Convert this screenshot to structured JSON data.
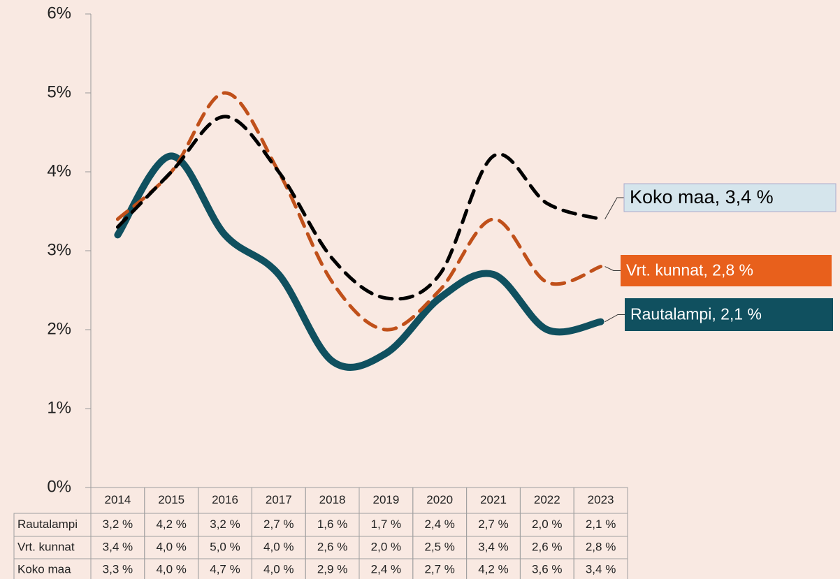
{
  "chart_data": {
    "type": "line",
    "categories": [
      "2014",
      "2015",
      "2016",
      "2017",
      "2018",
      "2019",
      "2020",
      "2021",
      "2022",
      "2023"
    ],
    "ylim": [
      0,
      6
    ],
    "yticks": [
      {
        "value": 0,
        "label": "0%"
      },
      {
        "value": 1,
        "label": "1%"
      },
      {
        "value": 2,
        "label": "2%"
      },
      {
        "value": 3,
        "label": "3%"
      },
      {
        "value": 4,
        "label": "4%"
      },
      {
        "value": 5,
        "label": "5%"
      },
      {
        "value": 6,
        "label": "6%"
      }
    ],
    "series": [
      {
        "name": "Rautalampi",
        "color": "#10505f",
        "style": "solid",
        "end_label": "Rautalampi, 2,1 %",
        "label_fill": "#10505f",
        "label_text": "#ffffff",
        "values": [
          3.2,
          4.2,
          3.2,
          2.7,
          1.6,
          1.7,
          2.4,
          2.7,
          2.0,
          2.1
        ],
        "value_labels": [
          "3,2 %",
          "4,2 %",
          "3,2 %",
          "2,7 %",
          "1,6 %",
          "1,7 %",
          "2,4 %",
          "2,7 %",
          "2,0 %",
          "2,1 %"
        ]
      },
      {
        "name": "Vrt. kunnat",
        "color": "#c0501a",
        "style": "dashed",
        "end_label": "Vrt. kunnat, 2,8 %",
        "label_fill": "#e8601c",
        "label_text": "#ffffff",
        "values": [
          3.4,
          4.0,
          5.0,
          4.0,
          2.6,
          2.0,
          2.5,
          3.4,
          2.6,
          2.8
        ],
        "value_labels": [
          "3,4 %",
          "4,0 %",
          "5,0 %",
          "4,0 %",
          "2,6 %",
          "2,0 %",
          "2,5 %",
          "3,4 %",
          "2,6 %",
          "2,8 %"
        ]
      },
      {
        "name": "Koko maa",
        "color": "#000000",
        "style": "dashed",
        "end_label": "Koko maa, 3,4 %",
        "label_fill": "#d5e5ec",
        "label_text": "#000000",
        "values": [
          3.3,
          4.0,
          4.7,
          4.0,
          2.9,
          2.4,
          2.7,
          4.2,
          3.6,
          3.4
        ],
        "value_labels": [
          "3,3 %",
          "4,0 %",
          "4,7 %",
          "4,0 %",
          "2,9 %",
          "2,4 %",
          "2,7 %",
          "4,2 %",
          "3,6 %",
          "3,4 %"
        ]
      }
    ]
  }
}
